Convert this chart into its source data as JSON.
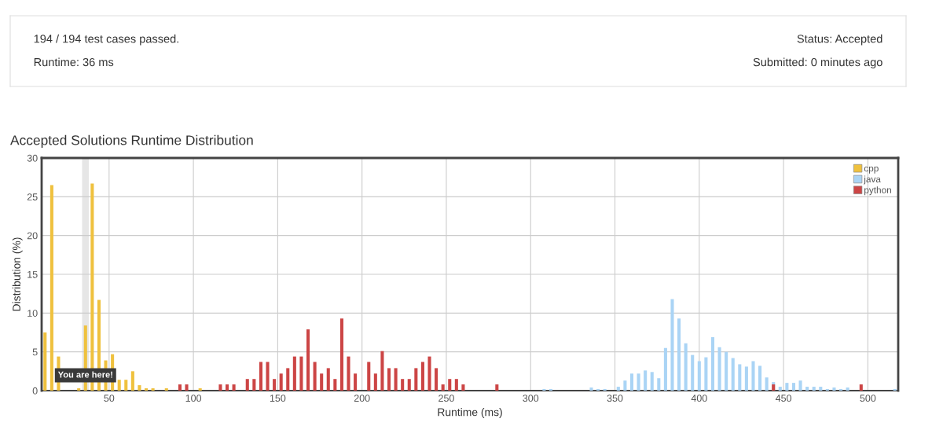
{
  "chart_data": [
    {
      "type": "other",
      "annotations": [
        "194 / 194 test cases passed.",
        "Runtime: 36 ms",
        "Status: Accepted",
        "Submitted: 0 minutes ago"
      ]
    },
    {
      "type": "bar",
      "title": "Accepted Solutions Runtime Distribution",
      "xlabel": "Runtime (ms)",
      "ylabel": "Distribution (%)",
      "xlim": [
        10,
        518
      ],
      "xticks": [
        50,
        100,
        150,
        200,
        250,
        300,
        350,
        400,
        450,
        500
      ],
      "ylim": [
        0,
        30
      ],
      "yticks": [
        0,
        5,
        10,
        15,
        20,
        25,
        30
      ],
      "grid": true,
      "legend": "top right",
      "series": [
        {
          "name": "cpp",
          "color": "#efc13e",
          "x": [
            12,
            16,
            20,
            28,
            32,
            36,
            40,
            44,
            48,
            52,
            56,
            60,
            64,
            68,
            72,
            76,
            84,
            104
          ],
          "values": [
            7.5,
            26.5,
            4.4,
            null,
            0.3,
            8.4,
            26.7,
            11.7,
            3.9,
            4.7,
            1.4,
            1.4,
            2.5,
            0.7,
            0.3,
            0.3,
            0.3,
            0.3
          ]
        },
        {
          "name": "java",
          "color": "#aad4f5",
          "x": [
            308,
            312,
            336,
            340,
            344,
            352,
            356,
            360,
            364,
            368,
            372,
            376,
            380,
            384,
            388,
            392,
            396,
            400,
            404,
            408,
            412,
            416,
            420,
            424,
            428,
            432,
            436,
            440,
            444,
            448,
            452,
            456,
            460,
            464,
            468,
            472,
            476,
            480,
            484,
            488,
            516
          ],
          "values": [
            0.2,
            0.2,
            0.4,
            0.2,
            0.2,
            0.5,
            1.3,
            2.2,
            2.2,
            2.6,
            2.4,
            1.6,
            5.5,
            11.8,
            9.3,
            6.1,
            4.6,
            3.8,
            4.3,
            6.9,
            5.6,
            5.0,
            4.2,
            3.4,
            3.1,
            3.8,
            3.2,
            1.7,
            1.1,
            0.5,
            1.0,
            1.0,
            1.3,
            0.5,
            0.5,
            0.5,
            0.2,
            0.4,
            0.2,
            0.4,
            0.2
          ]
        },
        {
          "name": "python",
          "color": "#cc4545",
          "x": [
            92,
            96,
            116,
            120,
            124,
            132,
            136,
            140,
            144,
            148,
            152,
            156,
            160,
            164,
            168,
            172,
            176,
            180,
            184,
            188,
            192,
            196,
            204,
            208,
            212,
            216,
            220,
            224,
            228,
            232,
            236,
            240,
            244,
            248,
            252,
            256,
            260,
            280,
            444,
            496
          ],
          "values": [
            0.8,
            0.8,
            0.8,
            0.8,
            0.8,
            1.5,
            1.5,
            3.7,
            3.7,
            1.5,
            2.2,
            2.9,
            4.4,
            4.4,
            7.9,
            3.7,
            2.2,
            2.9,
            1.5,
            9.3,
            4.4,
            2.2,
            3.7,
            2.2,
            5.1,
            2.9,
            2.9,
            1.5,
            1.5,
            2.9,
            3.7,
            4.4,
            2.9,
            0.8,
            1.5,
            1.5,
            0.8,
            0.8,
            0.8,
            0.8
          ]
        }
      ],
      "bands": [
        {
          "axis": "x",
          "from": 34,
          "to": 38,
          "color": "#e6e6e6"
        }
      ],
      "annotations": [
        {
          "text": "You are here!",
          "x": 36,
          "y": 0
        }
      ]
    }
  ]
}
